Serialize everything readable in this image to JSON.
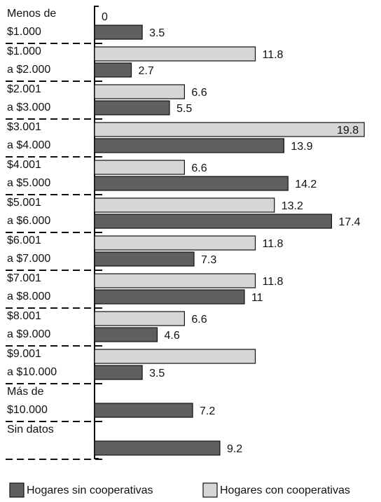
{
  "chart_data": {
    "type": "hbar",
    "categories": [
      [
        "Menos de",
        "$1.000"
      ],
      [
        "$1.000",
        "a $2.000"
      ],
      [
        "$2.001",
        "a $3.000"
      ],
      [
        "$3.001",
        "a $4.000"
      ],
      [
        "$4.001",
        "a $5.000"
      ],
      [
        "$5.001",
        "a $6.000"
      ],
      [
        "$6.001",
        "a $7.000"
      ],
      [
        "$7.001",
        "a $8.000"
      ],
      [
        "$8.001",
        "a $9.000"
      ],
      [
        "$9.001",
        "a $10.000"
      ],
      [
        "Más de",
        "$10.000"
      ],
      [
        "Sin datos"
      ]
    ],
    "series": [
      {
        "name": "Hogares sin cooperativas",
        "color": "#5f5f5f",
        "values": [
          3.5,
          2.7,
          5.5,
          13.9,
          14.2,
          17.4,
          7.3,
          11,
          4.6,
          3.5,
          7.2,
          9.2
        ]
      },
      {
        "name": "Hogares con cooperativas",
        "color": "#d6d6d6",
        "values": [
          0,
          11.8,
          6.6,
          19.8,
          6.6,
          13.2,
          11.8,
          11.8,
          6.6,
          11.8,
          null,
          null
        ],
        "value_labels": [
          "0",
          "11.8",
          "6.6",
          "19.8",
          "6.6",
          "13.2",
          "11.8",
          "11.8",
          "6.6",
          null,
          null,
          null
        ]
      }
    ],
    "xlim": [
      0,
      20
    ],
    "legend": "bottom"
  }
}
